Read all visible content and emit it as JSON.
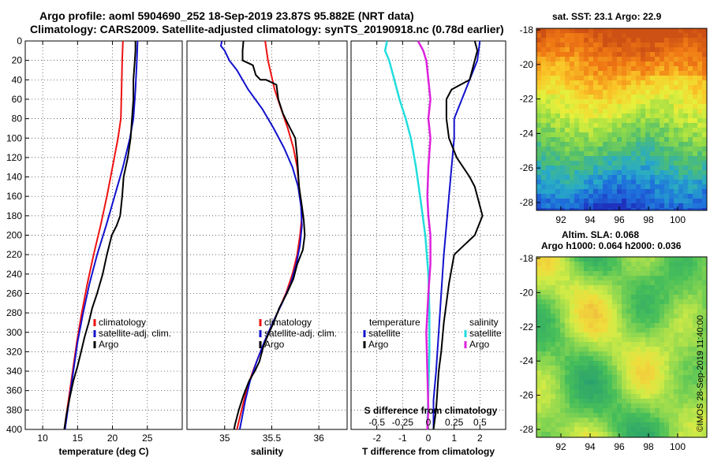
{
  "header": {
    "line1": "Argo profile: aoml 5904690_252 18-Sep-2019 23.87S 95.882E (NRT data)",
    "line2": "Climatology: CARS2009. Satellite-adjusted climatology: synTS_20190918.nc (0.78d earlier)"
  },
  "credit": "©IMOS 28-Sep-2019 11:40:00",
  "colors": {
    "climatology": "#ee1111",
    "satellite": "#1111cc",
    "argo": "#000000",
    "sat_s": "#22dddd",
    "argo_s": "#dd22dd",
    "grid": "#333333"
  },
  "maps": {
    "sst": {
      "title": "sat. SST: 23.1 Argo: 22.9",
      "yticks": [
        "-18",
        "-20",
        "-22",
        "-24",
        "-26",
        "-28"
      ],
      "xticks": [
        "92",
        "94",
        "96",
        "98",
        "100"
      ]
    },
    "sla": {
      "title_line1": "Altim. SLA: 0.068",
      "title_line2": "Argo h1000: 0.064 h2000: 0.036",
      "yticks": [
        "-18",
        "-20",
        "-22",
        "-24",
        "-26",
        "-28"
      ],
      "xticks": [
        "92",
        "94",
        "96",
        "98",
        "100"
      ]
    }
  },
  "chart_data": [
    {
      "type": "line",
      "name": "temperature",
      "xlabel": "temperature (deg C)",
      "ylabel": "",
      "xlim": [
        7.5,
        30
      ],
      "ylim": [
        400,
        0
      ],
      "xticks": [
        10,
        15,
        20,
        25
      ],
      "yticks": [
        0,
        20,
        40,
        60,
        80,
        100,
        120,
        140,
        160,
        180,
        200,
        220,
        240,
        260,
        280,
        300,
        320,
        340,
        360,
        380,
        400
      ],
      "legend": [
        "climatology",
        "satellite-adj. clim.",
        "Argo"
      ],
      "series": [
        {
          "name": "climatology",
          "color": "#ee1111",
          "points": [
            [
              21.5,
              0
            ],
            [
              21.4,
              20
            ],
            [
              21.3,
              50
            ],
            [
              21.2,
              80
            ],
            [
              20.8,
              100
            ],
            [
              20.0,
              130
            ],
            [
              19.2,
              160
            ],
            [
              18.3,
              190
            ],
            [
              17.3,
              220
            ],
            [
              16.4,
              250
            ],
            [
              15.6,
              280
            ],
            [
              14.9,
              310
            ],
            [
              14.3,
              340
            ],
            [
              13.7,
              370
            ],
            [
              13.1,
              400
            ]
          ]
        },
        {
          "name": "satellite-adj. clim.",
          "color": "#1111cc",
          "points": [
            [
              23.6,
              0
            ],
            [
              23.5,
              20
            ],
            [
              23.3,
              50
            ],
            [
              23.0,
              80
            ],
            [
              22.5,
              100
            ],
            [
              21.5,
              130
            ],
            [
              20.3,
              160
            ],
            [
              19.1,
              190
            ],
            [
              17.8,
              220
            ],
            [
              16.7,
              250
            ],
            [
              15.8,
              280
            ],
            [
              15.0,
              310
            ],
            [
              14.4,
              340
            ],
            [
              13.8,
              370
            ],
            [
              13.2,
              400
            ]
          ]
        },
        {
          "name": "Argo",
          "color": "#000000",
          "points": [
            [
              23.3,
              0
            ],
            [
              23.3,
              10
            ],
            [
              23.2,
              20
            ],
            [
              23.0,
              40
            ],
            [
              23.0,
              60
            ],
            [
              22.8,
              80
            ],
            [
              22.6,
              100
            ],
            [
              22.2,
              120
            ],
            [
              21.6,
              140
            ],
            [
              21.4,
              160
            ],
            [
              21.1,
              180
            ],
            [
              20.6,
              190
            ],
            [
              19.9,
              200
            ],
            [
              19.2,
              220
            ],
            [
              18.6,
              240
            ],
            [
              17.8,
              260
            ],
            [
              17.1,
              275
            ],
            [
              16.6,
              290
            ],
            [
              16.0,
              305
            ],
            [
              15.5,
              320
            ],
            [
              15.0,
              335
            ],
            [
              14.4,
              350
            ],
            [
              13.8,
              370
            ],
            [
              13.4,
              385
            ],
            [
              13.1,
              400
            ]
          ]
        }
      ]
    },
    {
      "type": "line",
      "name": "salinity",
      "xlabel": "salinity",
      "ylabel": "",
      "xlim": [
        34.6,
        36.3
      ],
      "ylim": [
        400,
        0
      ],
      "xticks": [
        35,
        35.5,
        36
      ],
      "tick_labels": [
        "35",
        "35.5",
        "36"
      ],
      "legend": [
        "climatology",
        "satellite-adj. clim.",
        "Argo"
      ],
      "series": [
        {
          "name": "climatology",
          "color": "#ee1111",
          "points": [
            [
              35.43,
              0
            ],
            [
              35.46,
              20
            ],
            [
              35.53,
              50
            ],
            [
              35.6,
              70
            ],
            [
              35.67,
              90
            ],
            [
              35.73,
              110
            ],
            [
              35.77,
              130
            ],
            [
              35.8,
              160
            ],
            [
              35.82,
              180
            ],
            [
              35.8,
              200
            ],
            [
              35.77,
              220
            ],
            [
              35.72,
              240
            ],
            [
              35.65,
              260
            ],
            [
              35.56,
              280
            ],
            [
              35.47,
              300
            ],
            [
              35.38,
              320
            ],
            [
              35.3,
              340
            ],
            [
              35.23,
              360
            ],
            [
              35.18,
              380
            ],
            [
              35.13,
              400
            ]
          ]
        },
        {
          "name": "satellite-adj. clim.",
          "color": "#1111cc",
          "points": [
            [
              34.97,
              0
            ],
            [
              34.96,
              5
            ],
            [
              35.0,
              10
            ],
            [
              35.05,
              20
            ],
            [
              35.13,
              30
            ],
            [
              35.25,
              50
            ],
            [
              35.4,
              70
            ],
            [
              35.52,
              90
            ],
            [
              35.63,
              110
            ],
            [
              35.72,
              130
            ],
            [
              35.78,
              150
            ],
            [
              35.81,
              170
            ],
            [
              35.82,
              190
            ],
            [
              35.8,
              210
            ],
            [
              35.76,
              230
            ],
            [
              35.7,
              250
            ],
            [
              35.61,
              270
            ],
            [
              35.51,
              290
            ],
            [
              35.42,
              310
            ],
            [
              35.34,
              330
            ],
            [
              35.27,
              350
            ],
            [
              35.22,
              370
            ],
            [
              35.18,
              390
            ],
            [
              35.16,
              400
            ]
          ]
        },
        {
          "name": "Argo",
          "color": "#000000",
          "points": [
            [
              35.2,
              0
            ],
            [
              35.19,
              10
            ],
            [
              35.19,
              20
            ],
            [
              35.3,
              25
            ],
            [
              35.33,
              35
            ],
            [
              35.38,
              40
            ],
            [
              35.44,
              40
            ],
            [
              35.55,
              45
            ],
            [
              35.57,
              60
            ],
            [
              35.62,
              75
            ],
            [
              35.67,
              85
            ],
            [
              35.75,
              100
            ],
            [
              35.77,
              120
            ],
            [
              35.79,
              150
            ],
            [
              35.82,
              170
            ],
            [
              35.84,
              185
            ],
            [
              35.85,
              200
            ],
            [
              35.83,
              215
            ],
            [
              35.77,
              230
            ],
            [
              35.73,
              245
            ],
            [
              35.66,
              260
            ],
            [
              35.58,
              275
            ],
            [
              35.52,
              290
            ],
            [
              35.45,
              305
            ],
            [
              35.41,
              315
            ],
            [
              35.37,
              330
            ],
            [
              35.32,
              340
            ],
            [
              35.26,
              350
            ],
            [
              35.2,
              365
            ],
            [
              35.15,
              380
            ],
            [
              35.11,
              395
            ],
            [
              35.1,
              400
            ]
          ]
        }
      ]
    },
    {
      "type": "line",
      "name": "difference from climatology",
      "xlabel": "T difference from climatology",
      "xlabel_top": "S difference from climatology",
      "xlim": [
        -3,
        3
      ],
      "ylim": [
        400,
        0
      ],
      "xticks": [
        -2,
        -1,
        0,
        1,
        2
      ],
      "top_xticks": [
        -0.5,
        -0.25,
        0,
        0.25,
        0.5
      ],
      "top_tick_labels": [
        "-0.5",
        "-0.25",
        "0",
        "0.25",
        "0.5"
      ],
      "legend_temperature": {
        "title": "temperature",
        "items": [
          "satellite",
          "Argo"
        ]
      },
      "legend_salinity": {
        "title": "salinity",
        "items": [
          "satellite",
          "Argo"
        ]
      },
      "series": [
        {
          "name": "temperature satellite",
          "color": "#1111cc",
          "points": [
            [
              2.0,
              0
            ],
            [
              1.9,
              20
            ],
            [
              1.6,
              40
            ],
            [
              1.3,
              60
            ],
            [
              1.0,
              80
            ],
            [
              1.0,
              100
            ],
            [
              0.9,
              130
            ],
            [
              0.8,
              160
            ],
            [
              0.7,
              190
            ],
            [
              0.6,
              220
            ],
            [
              0.5,
              260
            ],
            [
              0.4,
              300
            ],
            [
              0.3,
              340
            ],
            [
              0.2,
              370
            ],
            [
              0.2,
              400
            ]
          ]
        },
        {
          "name": "temperature Argo",
          "color": "#000000",
          "points": [
            [
              1.8,
              0
            ],
            [
              1.9,
              10
            ],
            [
              1.8,
              20
            ],
            [
              1.6,
              40
            ],
            [
              0.9,
              50
            ],
            [
              0.7,
              60
            ],
            [
              0.7,
              80
            ],
            [
              0.8,
              100
            ],
            [
              1.1,
              120
            ],
            [
              1.6,
              140
            ],
            [
              1.8,
              150
            ],
            [
              1.9,
              160
            ],
            [
              2.1,
              180
            ],
            [
              1.8,
              200
            ],
            [
              1.4,
              210
            ],
            [
              1.0,
              220
            ],
            [
              0.8,
              250
            ],
            [
              0.6,
              290
            ],
            [
              0.5,
              320
            ],
            [
              0.4,
              340
            ],
            [
              0.3,
              380
            ],
            [
              0.2,
              400
            ]
          ]
        },
        {
          "name": "salinity satellite",
          "color": "#22dddd",
          "points": [
            [
              -0.4,
              0
            ],
            [
              -0.42,
              10
            ],
            [
              -0.38,
              20
            ],
            [
              -0.33,
              40
            ],
            [
              -0.28,
              60
            ],
            [
              -0.22,
              80
            ],
            [
              -0.17,
              100
            ],
            [
              -0.12,
              130
            ],
            [
              -0.08,
              160
            ],
            [
              -0.03,
              200
            ],
            [
              0.0,
              240
            ],
            [
              0.01,
              280
            ],
            [
              0.01,
              320
            ],
            [
              0.0,
              360
            ],
            [
              -0.01,
              400
            ]
          ]
        },
        {
          "name": "salinity Argo",
          "color": "#dd22dd",
          "points": [
            [
              -0.1,
              0
            ],
            [
              -0.05,
              10
            ],
            [
              -0.02,
              20
            ],
            [
              0.0,
              40
            ],
            [
              0.02,
              60
            ],
            [
              0.0,
              80
            ],
            [
              0.02,
              100
            ],
            [
              0.0,
              130
            ],
            [
              -0.01,
              160
            ],
            [
              0.0,
              180
            ],
            [
              0.02,
              200
            ],
            [
              0.02,
              230
            ],
            [
              0.0,
              260
            ],
            [
              -0.02,
              300
            ],
            [
              -0.01,
              340
            ],
            [
              0.0,
              380
            ],
            [
              -0.01,
              400
            ]
          ]
        }
      ]
    }
  ]
}
